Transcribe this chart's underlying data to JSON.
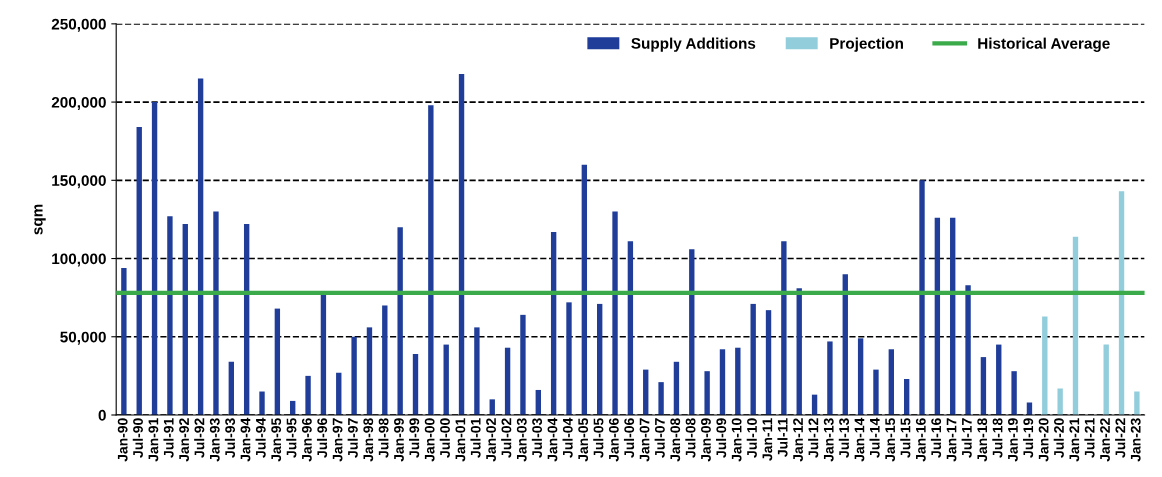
{
  "chart_data": {
    "type": "bar",
    "ylabel": "sqm",
    "categories": [
      "Jan-90",
      "Jul-90",
      "Jan-91",
      "Jul-91",
      "Jan-92",
      "Jul-92",
      "Jan-93",
      "Jul-93",
      "Jan-94",
      "Jul-94",
      "Jan-95",
      "Jul-95",
      "Jan-96",
      "Jul-96",
      "Jan-97",
      "Jul-97",
      "Jan-98",
      "Jul-98",
      "Jan-99",
      "Jul-99",
      "Jan-00",
      "Jul-00",
      "Jan-01",
      "Jul-01",
      "Jan-02",
      "Jul-02",
      "Jan-03",
      "Jul-03",
      "Jan-04",
      "Jul-04",
      "Jan-05",
      "Jul-05",
      "Jan-06",
      "Jul-06",
      "Jan-07",
      "Jul-07",
      "Jan-08",
      "Jul-08",
      "Jan-09",
      "Jul-09",
      "Jan-10",
      "Jul-10",
      "Jan-11",
      "Jul-11",
      "Jan-12",
      "Jul-12",
      "Jan-13",
      "Jul-13",
      "Jan-14",
      "Jul-14",
      "Jan-15",
      "Jul-15",
      "Jan-16",
      "Jul-16",
      "Jan-17",
      "Jul-17",
      "Jan-18",
      "Jul-18",
      "Jan-19",
      "Jul-19",
      "Jan-20",
      "Jul-20",
      "Jan-21",
      "Jul-21",
      "Jan-22",
      "Jul-22",
      "Jan-23"
    ],
    "series": [
      {
        "name": "Supply Additions",
        "color": "#1f3d99",
        "values": [
          94000,
          184000,
          200000,
          127000,
          122000,
          215000,
          130000,
          34000,
          122000,
          15000,
          68000,
          9000,
          25000,
          77000,
          27000,
          50000,
          56000,
          70000,
          120000,
          39000,
          198000,
          45000,
          218000,
          56000,
          10000,
          43000,
          64000,
          16000,
          117000,
          72000,
          160000,
          71000,
          130000,
          111000,
          29000,
          21000,
          34000,
          106000,
          28000,
          42000,
          43000,
          71000,
          67000,
          111000,
          81000,
          13000,
          47000,
          90000,
          49000,
          29000,
          42000,
          23000,
          150000,
          126000,
          126000,
          83000,
          37000,
          45000,
          28000,
          8000,
          null,
          null,
          null,
          null,
          null,
          null,
          null
        ]
      },
      {
        "name": "Projection",
        "color": "#92cddc",
        "values": [
          null,
          null,
          null,
          null,
          null,
          null,
          null,
          null,
          null,
          null,
          null,
          null,
          null,
          null,
          null,
          null,
          null,
          null,
          null,
          null,
          null,
          null,
          null,
          null,
          null,
          null,
          null,
          null,
          null,
          null,
          null,
          null,
          null,
          null,
          null,
          null,
          null,
          null,
          null,
          null,
          null,
          null,
          null,
          null,
          null,
          null,
          null,
          null,
          null,
          null,
          null,
          null,
          null,
          null,
          null,
          null,
          null,
          null,
          null,
          null,
          63000,
          17000,
          114000,
          null,
          45000,
          143000,
          15000
        ]
      }
    ],
    "ref_lines": [
      {
        "axis": "y",
        "value": 78000,
        "label": "Historical Average",
        "color": "#3aaa4a",
        "line_style": "solid"
      }
    ],
    "ylim": [
      0,
      250000
    ],
    "yticks": [
      {
        "value": 0,
        "label": "0"
      },
      {
        "value": 50000,
        "label": "50,000"
      },
      {
        "value": 100000,
        "label": "100,000"
      },
      {
        "value": 150000,
        "label": "150,000"
      },
      {
        "value": 200000,
        "label": "200,000"
      },
      {
        "value": 250000,
        "label": "250,000"
      }
    ],
    "grid": "y",
    "legend": "top right"
  }
}
